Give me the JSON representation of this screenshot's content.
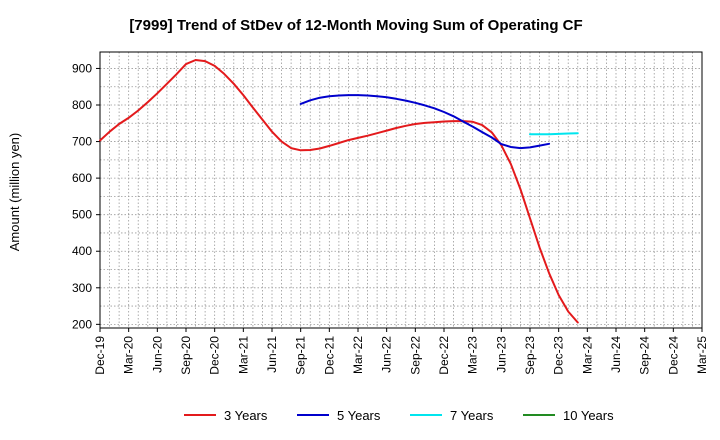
{
  "chart_data": {
    "type": "line",
    "title": "[7999]  Trend of StDev of 12-Month Moving Sum of Operating CF",
    "xlabel": "",
    "ylabel": "Amount (million yen)",
    "ylim": [
      190,
      945
    ],
    "yticks": [
      200,
      300,
      400,
      500,
      600,
      700,
      800,
      900
    ],
    "grid": true,
    "legend_position": "bottom",
    "x_start": "Dec-19",
    "x_tick_labels": [
      "Dec-19",
      "Mar-20",
      "Jun-20",
      "Sep-20",
      "Dec-20",
      "Mar-21",
      "Jun-21",
      "Sep-21",
      "Dec-21",
      "Mar-22",
      "Jun-22",
      "Sep-22",
      "Dec-22",
      "Mar-23",
      "Jun-23",
      "Sep-23",
      "Dec-23",
      "Mar-24",
      "Jun-24",
      "Sep-24",
      "Dec-24",
      "Mar-25"
    ],
    "series": [
      {
        "name": "3 Years",
        "color": "#e31a1c",
        "start_index": 0,
        "values": [
          703,
          727,
          748,
          765,
          785,
          808,
          832,
          858,
          884,
          912,
          923,
          920,
          907,
          885,
          858,
          827,
          793,
          760,
          727,
          700,
          682,
          676,
          677,
          681,
          688,
          696,
          704,
          710,
          716,
          723,
          730,
          737,
          743,
          748,
          751,
          753,
          755,
          756,
          756,
          754,
          745,
          725,
          690,
          638,
          570,
          490,
          410,
          340,
          280,
          235,
          205
        ]
      },
      {
        "name": "5 Years",
        "color": "#0000cc",
        "start_index": 21,
        "values": [
          803,
          813,
          820,
          824,
          826,
          827,
          827,
          826,
          824,
          821,
          817,
          812,
          806,
          799,
          791,
          781,
          769,
          755,
          741,
          726,
          711,
          693,
          685,
          682,
          684,
          689,
          694
        ]
      },
      {
        "name": "7 Years",
        "color": "#00e5ee",
        "start_index": 45,
        "values": [
          720,
          720,
          720,
          721,
          722,
          723
        ]
      },
      {
        "name": "10 Years",
        "color": "#228b22",
        "start_index": 0,
        "values": []
      }
    ]
  }
}
